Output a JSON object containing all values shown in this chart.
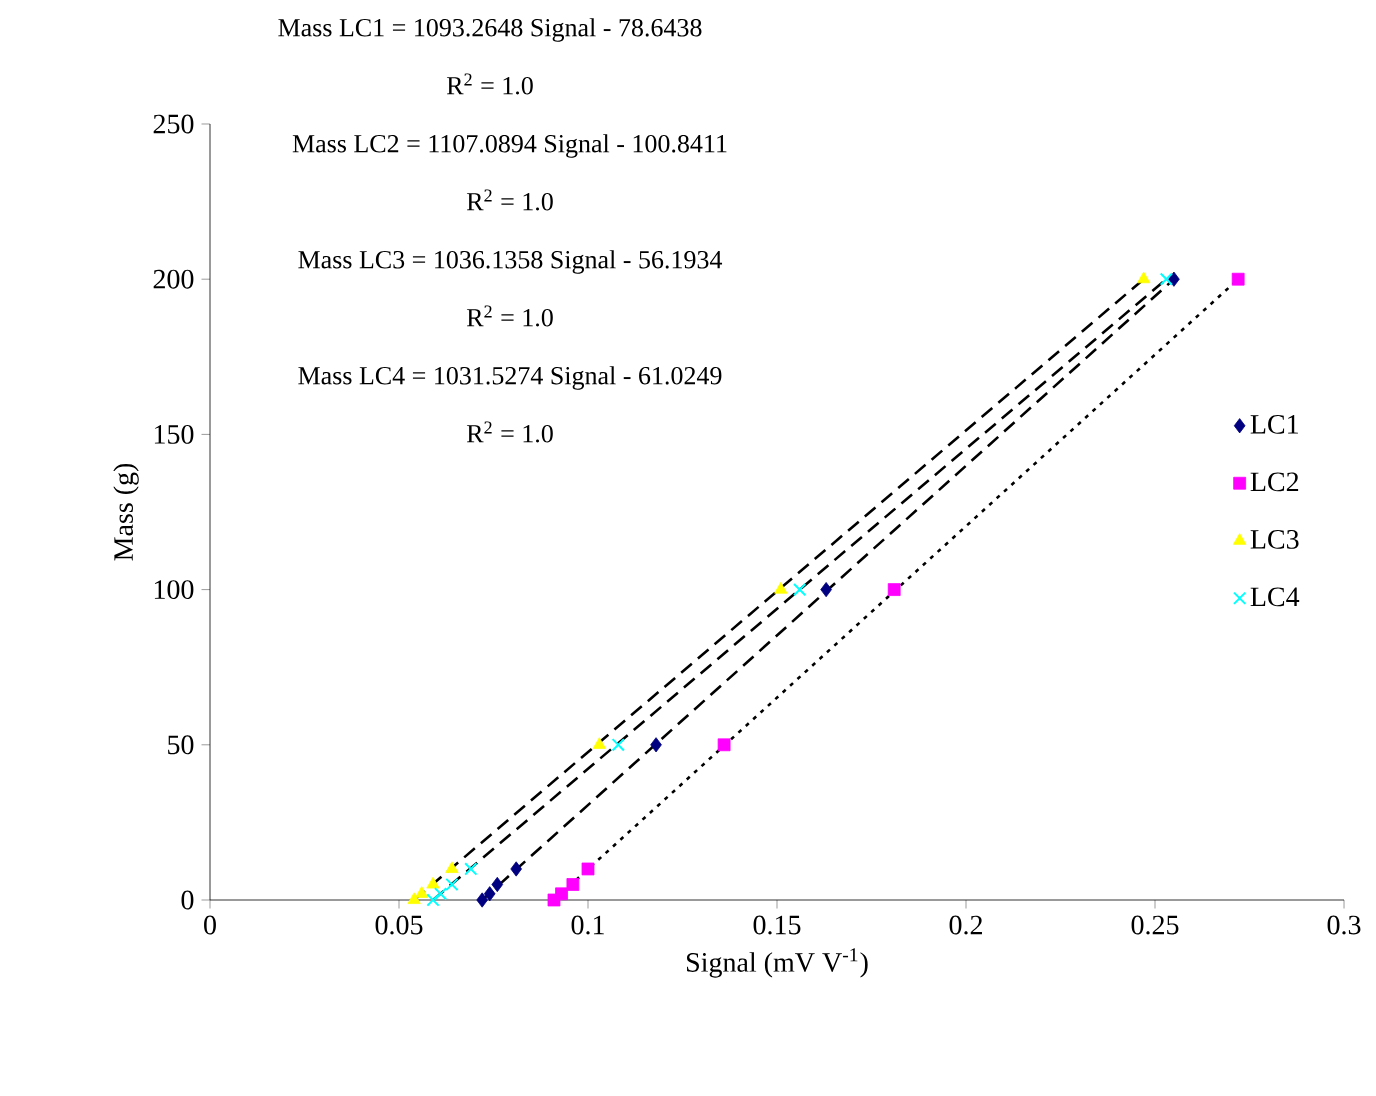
{
  "chart_data": {
    "type": "scatter",
    "xlabel": "Signal (mV V$^{-1}$)",
    "ylabel": "Mass (g)",
    "xlim": [
      0,
      0.3
    ],
    "xticks": [
      0,
      0.05,
      0.1,
      0.15,
      0.2,
      0.25,
      0.3
    ],
    "ylim": [
      0,
      250
    ],
    "yticks": [
      0,
      50,
      100,
      150,
      200,
      250
    ],
    "grid": false,
    "legend": "right",
    "annotations": [
      "Mass LC1 = 1093.2648 Signal - 78.6438",
      "R$^{2}$ = 1.0",
      "Mass LC2 = 1107.0894 Signal - 100.8411",
      "R$^{2}$ = 1.0",
      "Mass LC3 = 1036.1358 Signal - 56.1934",
      "R$^{2}$ = 1.0",
      "Mass LC4 = 1031.5274 Signal - 61.0249",
      "R$^{2}$ = 1.0"
    ],
    "series": [
      {
        "type": "line",
        "color": "#000000",
        "line_style": "dashed",
        "marker": "none",
        "x": [
          0.072,
          0.255
        ],
        "values": [
          0,
          200
        ]
      },
      {
        "type": "line",
        "color": "#000000",
        "line_style": "dotted",
        "marker": "none",
        "x": [
          0.091,
          0.272
        ],
        "values": [
          0,
          200
        ]
      },
      {
        "type": "line",
        "color": "#000000",
        "line_style": "dashed",
        "marker": "none",
        "x": [
          0.054,
          0.247
        ],
        "values": [
          0,
          200
        ]
      },
      {
        "type": "line",
        "color": "#000000",
        "line_style": "dashed",
        "marker": "none",
        "x": [
          0.059,
          0.253
        ],
        "values": [
          0,
          200
        ]
      },
      {
        "name": "LC1",
        "color": "#000080",
        "marker": "diamond",
        "x": [
          0.072,
          0.074,
          0.076,
          0.081,
          0.118,
          0.163,
          0.255
        ],
        "values": [
          0,
          2,
          5,
          10,
          50,
          100,
          200
        ]
      },
      {
        "name": "LC2",
        "color": "#ff00ff",
        "marker": "square",
        "x": [
          0.091,
          0.093,
          0.096,
          0.1,
          0.136,
          0.181,
          0.272
        ],
        "values": [
          0,
          2,
          5,
          10,
          50,
          100,
          200
        ]
      },
      {
        "name": "LC3",
        "color": "#ffff00",
        "marker": "triangle",
        "x": [
          0.054,
          0.056,
          0.059,
          0.064,
          0.103,
          0.151,
          0.247
        ],
        "values": [
          0,
          2,
          5,
          10,
          50,
          100,
          200
        ]
      },
      {
        "name": "LC4",
        "color": "#00ffff",
        "marker": "cross",
        "x": [
          0.059,
          0.061,
          0.064,
          0.069,
          0.108,
          0.156,
          0.253
        ],
        "values": [
          0,
          2,
          5,
          10,
          50,
          100,
          200
        ]
      }
    ]
  }
}
